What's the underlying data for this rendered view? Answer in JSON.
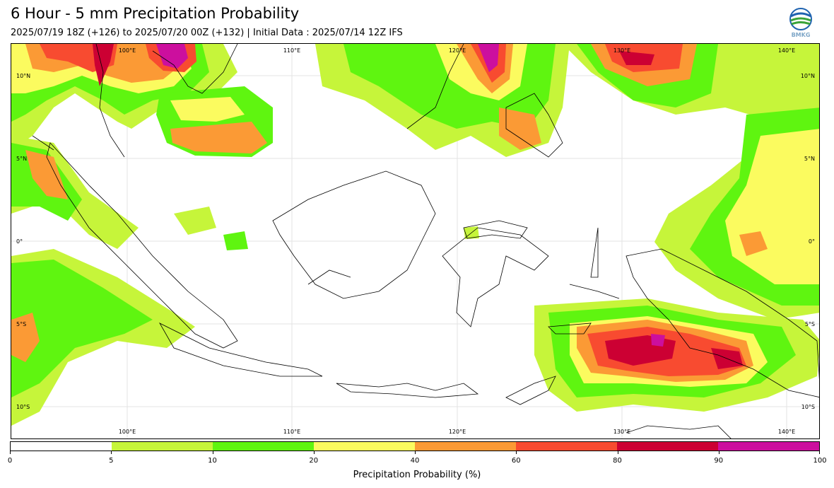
{
  "header": {
    "title": "6 Hour - 5 mm Precipitation Probability",
    "subtitle": "2025/07/19 18Z (+126) to 2025/07/20 00Z (+132) | Initial Data : 2025/07/14 12Z IFS",
    "logo_text": "BMKG"
  },
  "map": {
    "lon_labels": [
      "100°E",
      "110°E",
      "120°E",
      "130°E",
      "140°E"
    ],
    "lat_labels": [
      "10°N",
      "5°N",
      "0°",
      "5°S",
      "10°S"
    ]
  },
  "colorbar": {
    "label": "Precipitation Probability (%)",
    "ticks": [
      "0",
      "5",
      "10",
      "20",
      "40",
      "60",
      "80",
      "90",
      "100"
    ],
    "colors": [
      "#ffffff",
      "#c6f53a",
      "#5ff510",
      "#fbfb5f",
      "#fb9a35",
      "#f84b30",
      "#cc0033",
      "#cc0f9e"
    ]
  },
  "legend_meaning": {
    "0-5": "#ffffff",
    "5-10": "#c6f53a",
    "10-20": "#5ff510",
    "20-40": "#fbfb5f",
    "40-60": "#fb9a35",
    "60-80": "#f84b30",
    "80-90": "#cc0033",
    "90-100": "#cc0f9e"
  }
}
